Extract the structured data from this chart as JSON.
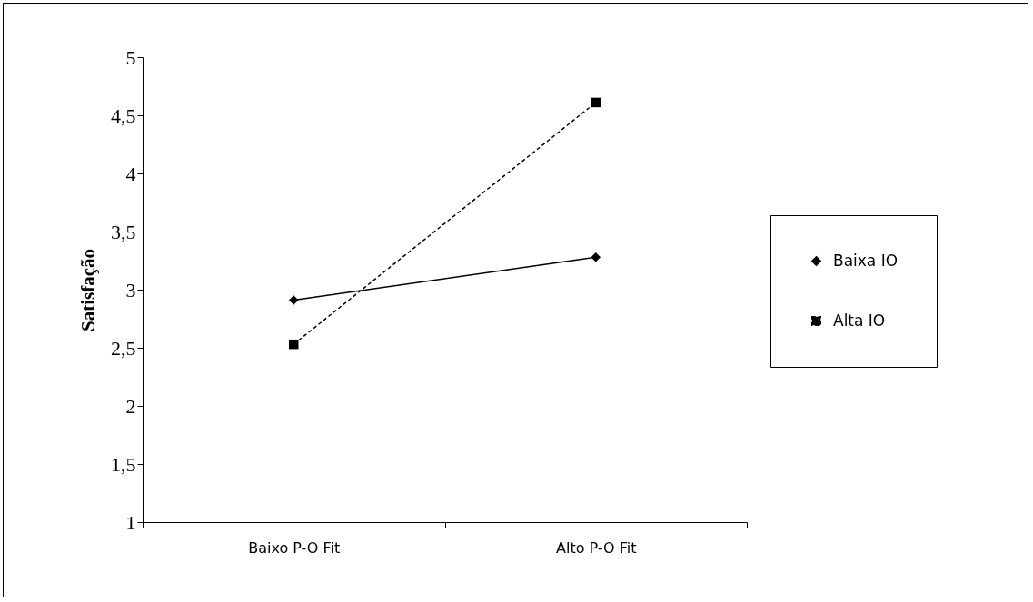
{
  "chart_data": {
    "type": "line",
    "ylabel": "Satisfação",
    "categories": [
      "Baixo P-O Fit",
      "Alto P-O Fit"
    ],
    "series": [
      {
        "name": "Baixa IO",
        "color": "#000000",
        "values": [
          2.91,
          3.28
        ],
        "marker": "diamond",
        "line_style": "solid"
      },
      {
        "name": "Alta IO",
        "color": "#000000",
        "values": [
          2.53,
          4.61
        ],
        "marker": "square",
        "line_style": "dashed"
      }
    ],
    "ylim": [
      1,
      5
    ],
    "yticks": [
      1,
      {
        "value": 1.5,
        "label": "1,5"
      },
      2,
      {
        "value": 2.5,
        "label": "2,5"
      },
      3,
      {
        "value": 3.5,
        "label": "3,5"
      },
      4,
      {
        "value": 4.5,
        "label": "4,5"
      },
      5
    ],
    "grid": false,
    "legend": "right"
  }
}
